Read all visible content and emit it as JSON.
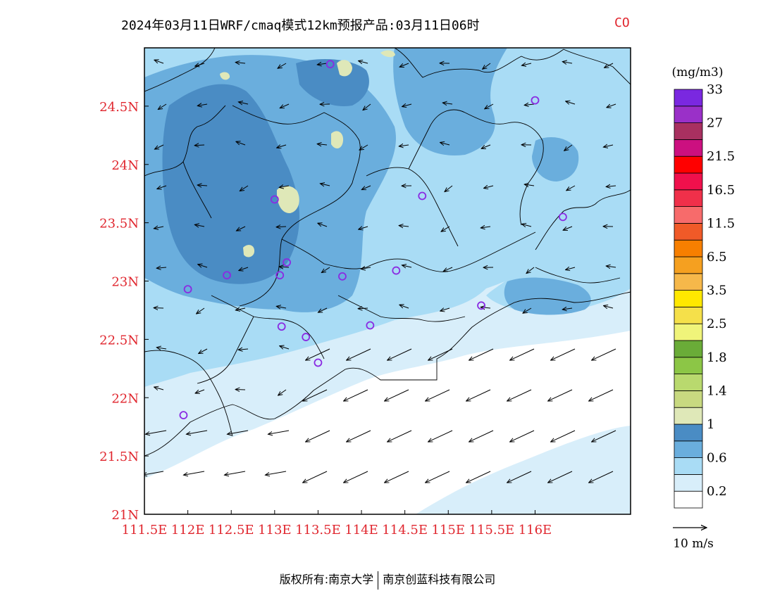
{
  "title": {
    "main": "2024年03月11日WRF/cmaq模式12km预报产品:03月11日06时",
    "species": "CO"
  },
  "colors": {
    "axis_label": "#e0262e",
    "title_species": "#e0262e",
    "station_marker": "#8a2be2",
    "border_line": "#000000"
  },
  "axes": {
    "lon_labels": [
      "111.5E",
      "112E",
      "112.5E",
      "113E",
      "113.5E",
      "114E",
      "114.5E",
      "115E",
      "115.5E",
      "116E"
    ],
    "lon_values": [
      111.5,
      112.0,
      112.5,
      113.0,
      113.5,
      114.0,
      114.5,
      115.0,
      115.5,
      116.0
    ],
    "lat_labels": [
      "24.5N",
      "24N",
      "23.5N",
      "23N",
      "22.5N",
      "22N",
      "21.5N",
      "21N"
    ],
    "lat_values": [
      24.5,
      24.0,
      23.5,
      23.0,
      22.5,
      22.0,
      21.5,
      21.0
    ],
    "lon_range": [
      111.5,
      117.1
    ],
    "lat_range": [
      21.0,
      25.0
    ]
  },
  "legend": {
    "unit": "(mg/m3)",
    "colors": [
      "#ffffff",
      "#d8eefa",
      "#a9dcf5",
      "#6aaedd",
      "#4a8cc4",
      "#dfe8b8",
      "#c8d980",
      "#b9d96e",
      "#8cc646",
      "#6aac38",
      "#f0f47a",
      "#f5e04a",
      "#ffe800",
      "#f6b84a",
      "#f5a020",
      "#f77f00",
      "#f05a28",
      "#f76b6b",
      "#f0304a",
      "#f0104c",
      "#ff0000",
      "#cc1080",
      "#a83060",
      "#9a30c8",
      "#7a28e0"
    ],
    "labels": [
      "0.2",
      "0.6",
      "1",
      "1.4",
      "1.8",
      "2.5",
      "3.5",
      "6.5",
      "11.5",
      "16.5",
      "21.5",
      "27",
      "33"
    ]
  },
  "wind_reference": {
    "label": "10 m/s"
  },
  "stations": [
    {
      "lon": 113.64,
      "lat": 24.86
    },
    {
      "lon": 116.0,
      "lat": 24.55
    },
    {
      "lon": 113.0,
      "lat": 23.7
    },
    {
      "lon": 114.7,
      "lat": 23.73
    },
    {
      "lon": 116.32,
      "lat": 23.55
    },
    {
      "lon": 113.14,
      "lat": 23.16
    },
    {
      "lon": 112.45,
      "lat": 23.05
    },
    {
      "lon": 113.06,
      "lat": 23.05
    },
    {
      "lon": 113.78,
      "lat": 23.04
    },
    {
      "lon": 114.4,
      "lat": 23.09
    },
    {
      "lon": 112.0,
      "lat": 22.93
    },
    {
      "lon": 115.38,
      "lat": 22.79
    },
    {
      "lon": 113.08,
      "lat": 22.61
    },
    {
      "lon": 114.1,
      "lat": 22.62
    },
    {
      "lon": 113.36,
      "lat": 22.52
    },
    {
      "lon": 113.5,
      "lat": 22.3
    },
    {
      "lon": 111.95,
      "lat": 21.85
    }
  ],
  "copyright": {
    "left": "版权所有:南京大学",
    "right": "南京创蓝科技有限公司"
  }
}
